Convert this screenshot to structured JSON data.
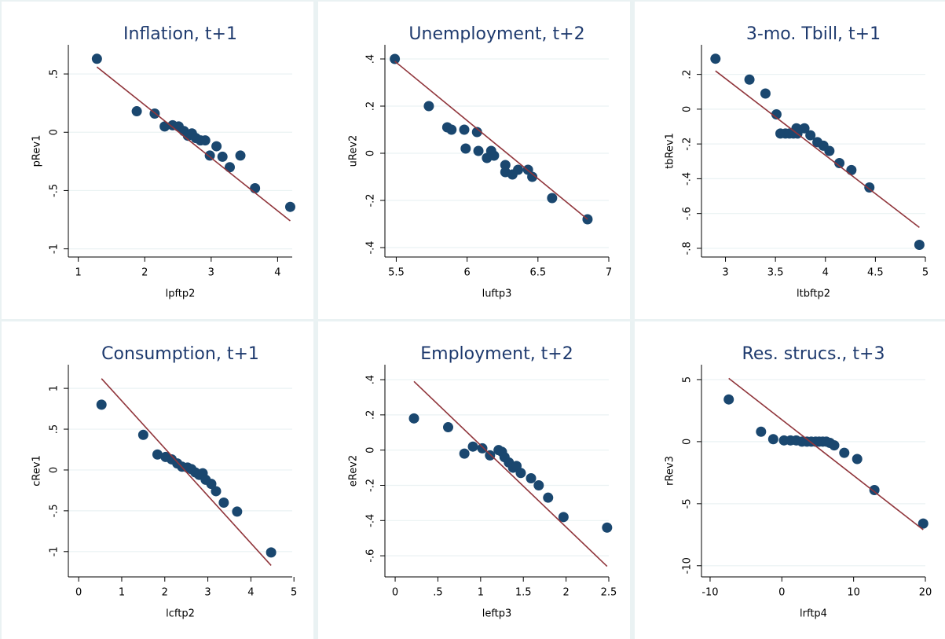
{
  "chart_data": [
    {
      "type": "scatter",
      "title": "Inflation, t+1",
      "xlabel": "lpftp2",
      "ylabel": "pRev1",
      "color": "#1a476f",
      "fit_color": "#90353b",
      "grid": true,
      "xlim": [
        0.85,
        4.22
      ],
      "ylim": [
        -1.07,
        0.75
      ],
      "xticks": [
        1,
        2,
        3,
        4
      ],
      "yticks": [
        {
          "value": 0.5,
          "label": ".5"
        },
        0,
        {
          "value": -0.5,
          "label": "-.5"
        },
        -1
      ],
      "x": [
        1.28,
        1.88,
        2.15,
        2.3,
        2.42,
        2.51,
        2.59,
        2.65,
        2.71,
        2.77,
        2.84,
        2.91,
        2.98,
        3.08,
        3.17,
        3.28,
        3.44,
        3.66,
        4.19
      ],
      "y": [
        0.63,
        0.18,
        0.16,
        0.05,
        0.06,
        0.05,
        0.01,
        -0.03,
        -0.01,
        -0.05,
        -0.07,
        -0.07,
        -0.2,
        -0.12,
        -0.21,
        -0.3,
        -0.2,
        -0.48,
        -0.64
      ],
      "fit": {
        "x": [
          1.28,
          4.19
        ],
        "y": [
          0.56,
          -0.76
        ]
      }
    },
    {
      "type": "scatter",
      "title": "Unemployment, t+2",
      "xlabel": "luftp3",
      "ylabel": "uRev2",
      "color": "#1a476f",
      "fit_color": "#90353b",
      "grid": true,
      "xlim": [
        5.42,
        7.0
      ],
      "ylim": [
        -0.44,
        0.46
      ],
      "xticks": [
        5.5,
        6,
        6.5,
        7
      ],
      "yticks": [
        {
          "value": 0.4,
          "label": ".4"
        },
        {
          "value": 0.2,
          "label": ".2"
        },
        0,
        {
          "value": -0.2,
          "label": "-.2"
        },
        {
          "value": -0.4,
          "label": "-.4"
        }
      ],
      "x": [
        5.49,
        5.73,
        5.86,
        5.89,
        5.98,
        5.99,
        6.07,
        6.08,
        6.14,
        6.17,
        6.19,
        6.27,
        6.27,
        6.32,
        6.36,
        6.43,
        6.46,
        6.6,
        6.85
      ],
      "y": [
        0.4,
        0.2,
        0.11,
        0.1,
        0.1,
        0.02,
        0.09,
        0.01,
        -0.02,
        0.01,
        -0.01,
        -0.05,
        -0.08,
        -0.09,
        -0.07,
        -0.07,
        -0.1,
        -0.19,
        -0.28
      ],
      "fit": {
        "x": [
          5.49,
          6.85
        ],
        "y": [
          0.39,
          -0.28
        ]
      }
    },
    {
      "type": "scatter",
      "title": "3-mo. Tbill, t+1",
      "xlabel": "ltbftp2",
      "ylabel": "tbRev1",
      "color": "#1a476f",
      "fit_color": "#90353b",
      "grid": true,
      "xlim": [
        2.76,
        5.0
      ],
      "ylim": [
        -0.85,
        0.37
      ],
      "xticks": [
        3,
        3.5,
        4,
        4.5,
        5
      ],
      "yticks": [
        {
          "value": 0.2,
          "label": ".2"
        },
        0,
        {
          "value": -0.2,
          "label": "-.2"
        },
        {
          "value": -0.4,
          "label": "-.4"
        },
        {
          "value": -0.6,
          "label": "-.6"
        },
        {
          "value": -0.8,
          "label": "-.8"
        }
      ],
      "x": [
        2.9,
        3.24,
        3.4,
        3.51,
        3.55,
        3.6,
        3.64,
        3.68,
        3.72,
        3.71,
        3.79,
        3.85,
        3.92,
        3.98,
        4.04,
        4.14,
        4.26,
        4.44,
        4.94
      ],
      "y": [
        0.29,
        0.17,
        0.09,
        -0.03,
        -0.14,
        -0.14,
        -0.14,
        -0.14,
        -0.14,
        -0.11,
        -0.11,
        -0.15,
        -0.19,
        -0.21,
        -0.24,
        -0.31,
        -0.35,
        -0.45,
        -0.78
      ],
      "fit": {
        "x": [
          2.9,
          4.94
        ],
        "y": [
          0.22,
          -0.68
        ]
      }
    },
    {
      "type": "scatter",
      "title": "Consumption, t+1",
      "xlabel": "lcftp2",
      "ylabel": "cRev1",
      "color": "#1a476f",
      "fit_color": "#90353b",
      "grid": true,
      "xlim": [
        -0.24,
        4.96
      ],
      "ylim": [
        -1.31,
        1.29
      ],
      "xticks": [
        0,
        1,
        2,
        3,
        4,
        5
      ],
      "yticks": [
        1,
        {
          "value": 0.5,
          "label": ".5"
        },
        0,
        {
          "value": -0.5,
          "label": "-.5"
        },
        -1
      ],
      "x": [
        0.53,
        1.5,
        1.83,
        2.02,
        2.16,
        2.29,
        2.4,
        2.53,
        2.62,
        2.71,
        2.8,
        2.88,
        2.95,
        3.08,
        3.19,
        3.37,
        3.68,
        4.47
      ],
      "y": [
        0.8,
        0.43,
        0.19,
        0.16,
        0.13,
        0.08,
        0.04,
        0.03,
        0.01,
        -0.03,
        -0.06,
        -0.04,
        -0.12,
        -0.17,
        -0.26,
        -0.4,
        -0.51,
        -1.01
      ],
      "fit": {
        "x": [
          0.53,
          4.47
        ],
        "y": [
          1.12,
          -1.17
        ]
      }
    },
    {
      "type": "scatter",
      "title": "Employment, t+2",
      "xlabel": "leftp3",
      "ylabel": "eRev2",
      "color": "#1a476f",
      "fit_color": "#90353b",
      "grid": true,
      "xlim": [
        -0.12,
        2.5
      ],
      "ylim": [
        -0.72,
        0.485
      ],
      "xticks": [
        0,
        {
          "value": 0.5,
          "label": ".5"
        },
        1,
        1.5,
        2,
        2.5
      ],
      "yticks": [
        {
          "value": 0.4,
          "label": ".4"
        },
        {
          "value": 0.2,
          "label": ".2"
        },
        0,
        {
          "value": -0.2,
          "label": "-.2"
        },
        {
          "value": -0.4,
          "label": "-.4"
        },
        {
          "value": -0.6,
          "label": "-.6"
        }
      ],
      "x": [
        0.22,
        0.62,
        0.81,
        0.91,
        1.02,
        1.11,
        1.21,
        1.25,
        1.28,
        1.33,
        1.38,
        1.42,
        1.47,
        1.59,
        1.68,
        1.79,
        1.97,
        2.48
      ],
      "y": [
        0.18,
        0.13,
        -0.02,
        0.02,
        0.01,
        -0.03,
        0.0,
        -0.01,
        -0.04,
        -0.07,
        -0.1,
        -0.09,
        -0.13,
        -0.16,
        -0.2,
        -0.27,
        -0.38,
        -0.44
      ],
      "fit": {
        "x": [
          0.22,
          2.48
        ],
        "y": [
          0.39,
          -0.66
        ]
      }
    },
    {
      "type": "scatter",
      "title": "Res. strucs., t+3",
      "xlabel": "lrftp4",
      "ylabel": "rRev3",
      "color": "#1a476f",
      "fit_color": "#90353b",
      "grid": true,
      "xlim": [
        -11.2,
        20
      ],
      "ylim": [
        -10.9,
        6.2
      ],
      "xticks": [
        -10,
        0,
        10,
        20
      ],
      "yticks": [
        5,
        0,
        -5,
        -10
      ],
      "x": [
        -7.4,
        -2.9,
        -1.2,
        0.3,
        1.2,
        2.0,
        2.8,
        3.5,
        4.1,
        4.7,
        5.2,
        5.7,
        6.2,
        6.7,
        7.3,
        8.7,
        10.5,
        12.9,
        19.7
      ],
      "y": [
        3.4,
        0.8,
        0.2,
        0.1,
        0.1,
        0.1,
        0.0,
        0.0,
        0.0,
        0.0,
        0.0,
        0.0,
        0.0,
        -0.1,
        -0.3,
        -0.9,
        -1.4,
        -3.9,
        -6.6
      ],
      "fit": {
        "x": [
          -7.4,
          19.7
        ],
        "y": [
          5.1,
          -7.1
        ]
      }
    }
  ]
}
